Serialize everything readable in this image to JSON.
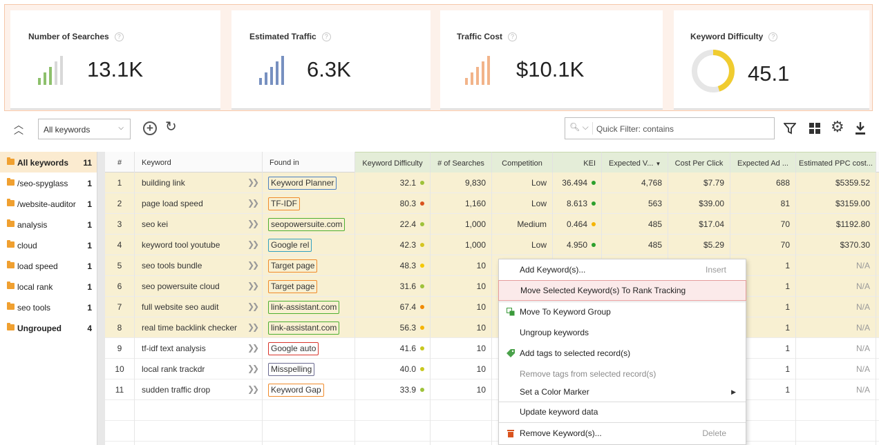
{
  "metrics": [
    {
      "title": "Number of Searches",
      "value": "13.1K",
      "icon": "signal-bars-icon",
      "color": "#8dc06c",
      "help": "?"
    },
    {
      "title": "Estimated Traffic",
      "value": "6.3K",
      "icon": "signal-bars-icon",
      "color": "#7790c0",
      "help": "?"
    },
    {
      "title": "Traffic Cost",
      "value": "$10.1K",
      "icon": "signal-bars-icon",
      "color": "#f2b48a",
      "help": "?"
    },
    {
      "title": "Keyword Difficulty",
      "value": "45.1",
      "icon": "donut-gauge-icon",
      "color": "#f0cc30",
      "gauge_fraction": 0.451,
      "help": "?"
    }
  ],
  "toolbar": {
    "collapse_icon": "double-chevron-up-icon",
    "filter_select": "All keywords",
    "search_placeholder": "Quick Filter: contains",
    "icons": [
      "add-circle-icon",
      "refresh-icon",
      "search-icon",
      "filter-icon",
      "grid-icon",
      "gear-icon",
      "download-icon"
    ]
  },
  "sidebar": {
    "items": [
      {
        "label": "All keywords",
        "count": "11"
      },
      {
        "label": "/seo-spyglass",
        "count": "1"
      },
      {
        "label": "/website-auditor",
        "count": "1"
      },
      {
        "label": "analysis",
        "count": "1"
      },
      {
        "label": "cloud",
        "count": "1"
      },
      {
        "label": "load speed",
        "count": "1"
      },
      {
        "label": "local rank",
        "count": "1"
      },
      {
        "label": "seo tools",
        "count": "1"
      },
      {
        "label": "Ungrouped",
        "count": "4"
      }
    ]
  },
  "table": {
    "columns": [
      "#",
      "Keyword",
      "Found in",
      "Keyword Difficulty",
      "# of Searches",
      "Competition",
      "KEI",
      "Expected V...",
      "Cost Per Click",
      "Expected Ad ...",
      "Estimated PPC cost..."
    ],
    "rows": [
      {
        "n": "1",
        "keyword": "building link",
        "found": "Keyword Planner",
        "found_color": "#4a7ec0",
        "kd": "32.1",
        "kd_color": "#9ec23a",
        "searches": "9,830",
        "competition": "Low",
        "kei": "36.494",
        "kei_color": "#2ca02c",
        "expected": "4,768",
        "cpc": "$7.79",
        "ad": "688",
        "ppc": "$5359.52",
        "selected": true
      },
      {
        "n": "2",
        "keyword": "page load speed",
        "found": "TF-IDF",
        "found_color": "#f08a2a",
        "kd": "80.3",
        "kd_color": "#d9531e",
        "searches": "1,160",
        "competition": "Low",
        "kei": "8.613",
        "kei_color": "#2ca02c",
        "expected": "563",
        "cpc": "$39.00",
        "ad": "81",
        "ppc": "$3159.00",
        "selected": true
      },
      {
        "n": "3",
        "keyword": "seo kei",
        "found": "seopowersuite.com",
        "found_color": "#4caf30",
        "kd": "22.4",
        "kd_color": "#9ec23a",
        "searches": "1,000",
        "competition": "Medium",
        "kei": "0.464",
        "kei_color": "#f5b400",
        "expected": "485",
        "cpc": "$17.04",
        "ad": "70",
        "ppc": "$1192.80",
        "selected": true
      },
      {
        "n": "4",
        "keyword": "keyword tool youtube",
        "found": "Google rel",
        "found_color": "#30a0c0",
        "kd": "42.3",
        "kd_color": "#d4c520",
        "searches": "1,000",
        "competition": "Low",
        "kei": "4.950",
        "kei_color": "#2ca02c",
        "expected": "485",
        "cpc": "$5.29",
        "ad": "70",
        "ppc": "$370.30",
        "selected": true
      },
      {
        "n": "5",
        "keyword": "seo tools bundle",
        "found": "Target page",
        "found_color": "#f08a2a",
        "kd": "48.3",
        "kd_color": "#f5c800",
        "searches": "10",
        "competition": "",
        "kei": "",
        "kei_color": "",
        "expected": "",
        "cpc": "",
        "ad": "1",
        "ppc": "N/A",
        "selected": true
      },
      {
        "n": "6",
        "keyword": "seo powersuite cloud",
        "found": "Target page",
        "found_color": "#f08a2a",
        "kd": "31.6",
        "kd_color": "#9ec23a",
        "searches": "10",
        "competition": "",
        "kei": "",
        "kei_color": "",
        "expected": "",
        "cpc": "",
        "ad": "1",
        "ppc": "N/A",
        "selected": true
      },
      {
        "n": "7",
        "keyword": "full website seo audit",
        "found": "link-assistant.com",
        "found_color": "#4caf30",
        "kd": "67.4",
        "kd_color": "#f08a00",
        "searches": "10",
        "competition": "",
        "kei": "",
        "kei_color": "",
        "expected": "",
        "cpc": "",
        "ad": "1",
        "ppc": "N/A",
        "selected": true
      },
      {
        "n": "8",
        "keyword": "real time backlink checker",
        "found": "link-assistant.com",
        "found_color": "#4caf30",
        "kd": "56.3",
        "kd_color": "#f5b400",
        "searches": "10",
        "competition": "",
        "kei": "",
        "kei_color": "",
        "expected": "",
        "cpc": "",
        "ad": "1",
        "ppc": "N/A",
        "selected": true
      },
      {
        "n": "9",
        "keyword": "tf-idf text analysis",
        "found": "Google auto",
        "found_color": "#d8332a",
        "kd": "41.6",
        "kd_color": "#c8c820",
        "searches": "10",
        "competition": "",
        "kei": "",
        "kei_color": "",
        "expected": "",
        "cpc": "",
        "ad": "1",
        "ppc": "N/A",
        "selected": false
      },
      {
        "n": "10",
        "keyword": "local rank trackdr",
        "found": "Misspelling",
        "found_color": "#6a6a90",
        "kd": "40.0",
        "kd_color": "#c8c820",
        "searches": "10",
        "competition": "",
        "kei": "",
        "kei_color": "",
        "expected": "",
        "cpc": "",
        "ad": "1",
        "ppc": "N/A",
        "selected": false
      },
      {
        "n": "11",
        "keyword": "sudden traffic drop",
        "found": "Keyword Gap",
        "found_color": "#f08a2a",
        "kd": "33.9",
        "kd_color": "#9ec23a",
        "searches": "10",
        "competition": "",
        "kei": "",
        "kei_color": "",
        "expected": "",
        "cpc": "",
        "ad": "1",
        "ppc": "N/A",
        "selected": false
      }
    ]
  },
  "context_menu": {
    "items": [
      {
        "label": "Add Keyword(s)...",
        "shortcut": "Insert",
        "icon": ""
      },
      {
        "label": "Move Selected Keyword(s) To Rank Tracking",
        "shortcut": "",
        "icon": "",
        "highlighted": true
      },
      {
        "label": "Move To Keyword Group",
        "shortcut": "",
        "icon": "move-group-icon"
      },
      {
        "label": "Ungroup keywords",
        "shortcut": "",
        "icon": ""
      },
      {
        "label": "Add tags to selected record(s)",
        "shortcut": "",
        "icon": "tag-icon"
      },
      {
        "label": "Remove tags from selected record(s)",
        "shortcut": "",
        "icon": "",
        "disabled": true
      },
      {
        "label": "Set a Color Marker",
        "shortcut": "",
        "icon": "",
        "submenu": true
      },
      {
        "label": "Update keyword data",
        "shortcut": "",
        "icon": ""
      },
      {
        "label": "Remove Keyword(s)...",
        "shortcut": "Delete",
        "icon": "trash-icon"
      }
    ]
  }
}
